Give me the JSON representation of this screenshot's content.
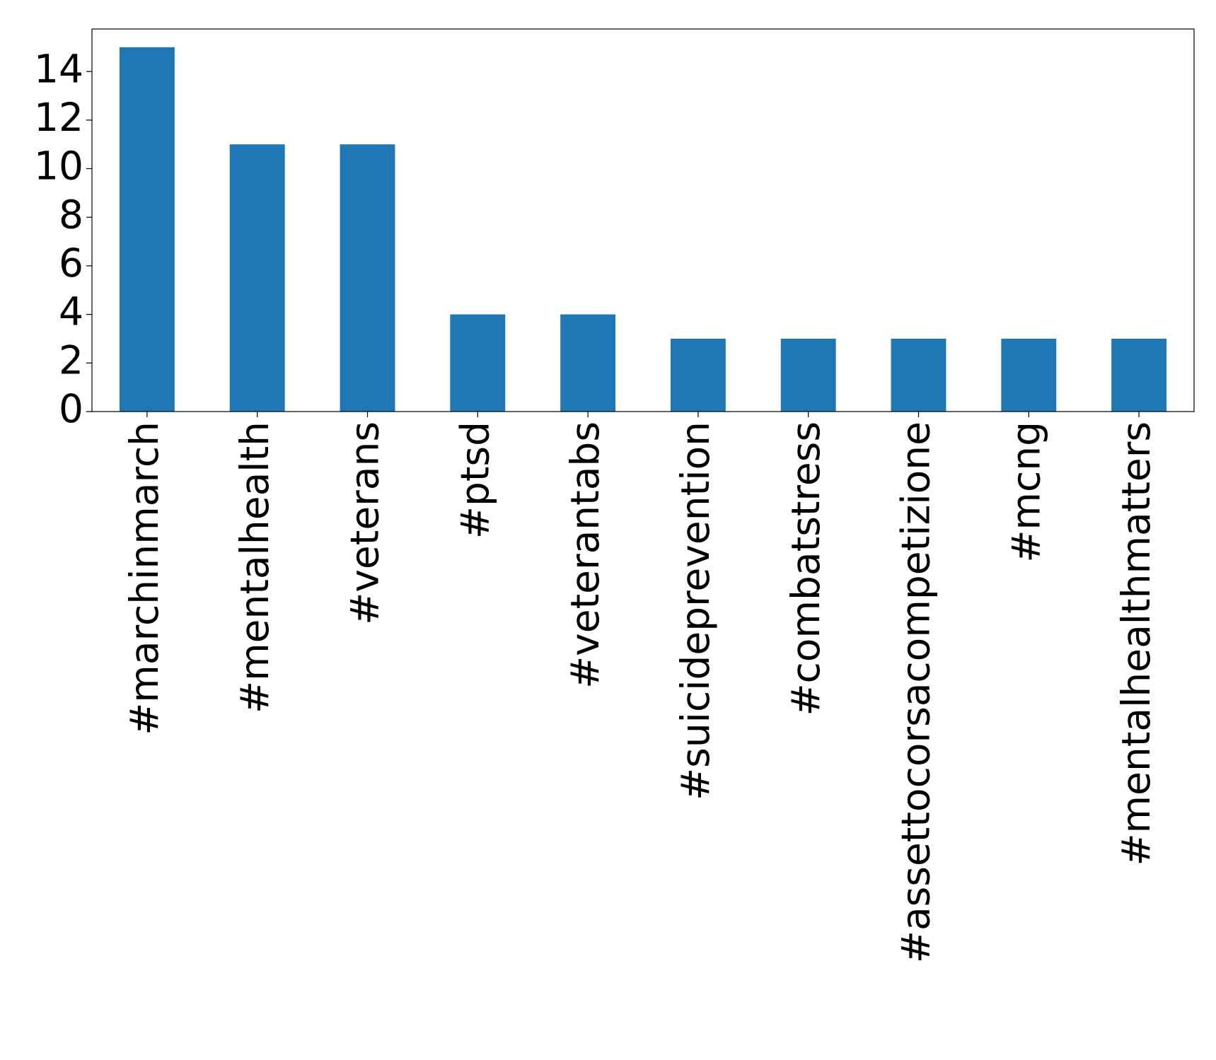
{
  "chart_data": {
    "type": "bar",
    "categories": [
      "#marchinmarch",
      "#mentalhealth",
      "#veterans",
      "#ptsd",
      "#veterantabs",
      "#suicideprevention",
      "#combatstress",
      "#assettocorsacompetizione",
      "#mcng",
      "#mentalhealthmatters"
    ],
    "values": [
      15,
      11,
      11,
      4,
      4,
      3,
      3,
      3,
      3,
      3
    ],
    "color": "#1f77b4",
    "ylim": [
      0,
      15.75
    ],
    "yticks": [
      0,
      2,
      4,
      6,
      8,
      10,
      12,
      14
    ],
    "grid": false
  }
}
